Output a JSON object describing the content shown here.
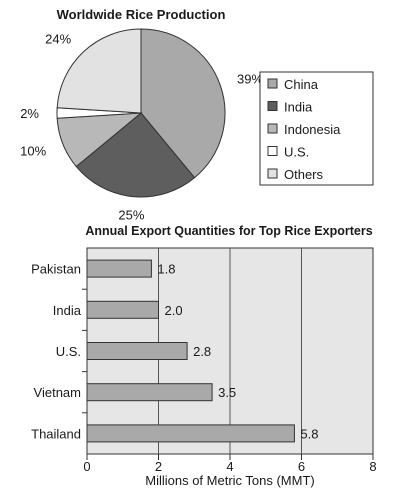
{
  "chart_data": [
    {
      "type": "pie",
      "title": "Worldwide Rice Production",
      "slices": [
        {
          "label": "China",
          "value": 39,
          "value_label": "39%",
          "color": "#a9a9a9"
        },
        {
          "label": "India",
          "value": 25,
          "value_label": "25%",
          "color": "#5e5e5e"
        },
        {
          "label": "Indonesia",
          "value": 10,
          "value_label": "10%",
          "color": "#b8b8b8"
        },
        {
          "label": "U.S.",
          "value": 2,
          "value_label": "2%",
          "color": "#ffffff"
        },
        {
          "label": "Others",
          "value": 24,
          "value_label": "24%",
          "color": "#e2e2e2"
        }
      ],
      "legend_position": "right"
    },
    {
      "type": "bar",
      "orientation": "horizontal",
      "title": "Annual Export Quantities for Top Rice Exporters",
      "xlabel": "Millions of Metric Tons (MMT)",
      "ylabel": "",
      "categories": [
        "Pakistan",
        "India",
        "U.S.",
        "Vietnam",
        "Thailand"
      ],
      "values": [
        1.8,
        2.0,
        2.8,
        3.5,
        5.8
      ],
      "value_labels": [
        "1.8",
        "2.0",
        "2.8",
        "3.5",
        "5.8"
      ],
      "xlim": [
        0,
        8
      ],
      "xticks": [
        0,
        2,
        4,
        6,
        8
      ],
      "xtick_labels": [
        "0",
        "2",
        "4",
        "6",
        "8"
      ],
      "grid": true,
      "bar_color": "#a9a9a9",
      "background_color": "#e6e6e6"
    }
  ]
}
